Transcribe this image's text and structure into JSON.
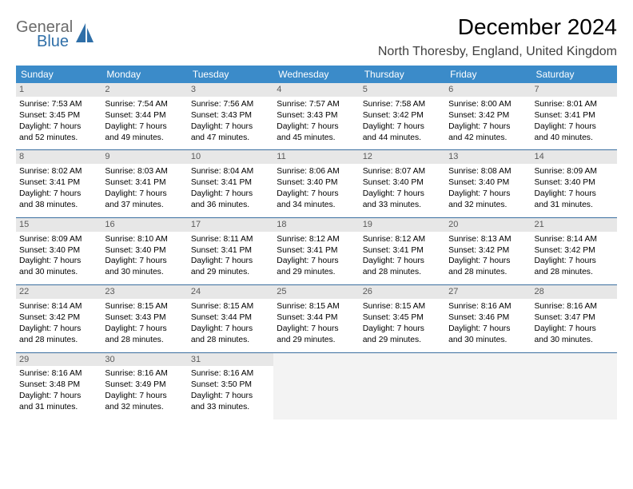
{
  "logo": {
    "line1": "General",
    "line2": "Blue"
  },
  "title": "December 2024",
  "location": "North Thoresby, England, United Kingdom",
  "colors": {
    "header_bg": "#3b8bc9",
    "header_fg": "#ffffff",
    "daynum_bg": "#e7e7e7",
    "daynum_fg": "#5a5a5a",
    "divider": "#3b6fa0",
    "empty_cell": "#f3f3f3",
    "logo_gray": "#6b6b6b",
    "logo_blue": "#2f6fa8"
  },
  "day_headers": [
    "Sunday",
    "Monday",
    "Tuesday",
    "Wednesday",
    "Thursday",
    "Friday",
    "Saturday"
  ],
  "weeks": [
    [
      {
        "day": 1,
        "sunrise": "7:53 AM",
        "sunset": "3:45 PM",
        "daylight": "7 hours and 52 minutes."
      },
      {
        "day": 2,
        "sunrise": "7:54 AM",
        "sunset": "3:44 PM",
        "daylight": "7 hours and 49 minutes."
      },
      {
        "day": 3,
        "sunrise": "7:56 AM",
        "sunset": "3:43 PM",
        "daylight": "7 hours and 47 minutes."
      },
      {
        "day": 4,
        "sunrise": "7:57 AM",
        "sunset": "3:43 PM",
        "daylight": "7 hours and 45 minutes."
      },
      {
        "day": 5,
        "sunrise": "7:58 AM",
        "sunset": "3:42 PM",
        "daylight": "7 hours and 44 minutes."
      },
      {
        "day": 6,
        "sunrise": "8:00 AM",
        "sunset": "3:42 PM",
        "daylight": "7 hours and 42 minutes."
      },
      {
        "day": 7,
        "sunrise": "8:01 AM",
        "sunset": "3:41 PM",
        "daylight": "7 hours and 40 minutes."
      }
    ],
    [
      {
        "day": 8,
        "sunrise": "8:02 AM",
        "sunset": "3:41 PM",
        "daylight": "7 hours and 38 minutes."
      },
      {
        "day": 9,
        "sunrise": "8:03 AM",
        "sunset": "3:41 PM",
        "daylight": "7 hours and 37 minutes."
      },
      {
        "day": 10,
        "sunrise": "8:04 AM",
        "sunset": "3:41 PM",
        "daylight": "7 hours and 36 minutes."
      },
      {
        "day": 11,
        "sunrise": "8:06 AM",
        "sunset": "3:40 PM",
        "daylight": "7 hours and 34 minutes."
      },
      {
        "day": 12,
        "sunrise": "8:07 AM",
        "sunset": "3:40 PM",
        "daylight": "7 hours and 33 minutes."
      },
      {
        "day": 13,
        "sunrise": "8:08 AM",
        "sunset": "3:40 PM",
        "daylight": "7 hours and 32 minutes."
      },
      {
        "day": 14,
        "sunrise": "8:09 AM",
        "sunset": "3:40 PM",
        "daylight": "7 hours and 31 minutes."
      }
    ],
    [
      {
        "day": 15,
        "sunrise": "8:09 AM",
        "sunset": "3:40 PM",
        "daylight": "7 hours and 30 minutes."
      },
      {
        "day": 16,
        "sunrise": "8:10 AM",
        "sunset": "3:40 PM",
        "daylight": "7 hours and 30 minutes."
      },
      {
        "day": 17,
        "sunrise": "8:11 AM",
        "sunset": "3:41 PM",
        "daylight": "7 hours and 29 minutes."
      },
      {
        "day": 18,
        "sunrise": "8:12 AM",
        "sunset": "3:41 PM",
        "daylight": "7 hours and 29 minutes."
      },
      {
        "day": 19,
        "sunrise": "8:12 AM",
        "sunset": "3:41 PM",
        "daylight": "7 hours and 28 minutes."
      },
      {
        "day": 20,
        "sunrise": "8:13 AM",
        "sunset": "3:42 PM",
        "daylight": "7 hours and 28 minutes."
      },
      {
        "day": 21,
        "sunrise": "8:14 AM",
        "sunset": "3:42 PM",
        "daylight": "7 hours and 28 minutes."
      }
    ],
    [
      {
        "day": 22,
        "sunrise": "8:14 AM",
        "sunset": "3:42 PM",
        "daylight": "7 hours and 28 minutes."
      },
      {
        "day": 23,
        "sunrise": "8:15 AM",
        "sunset": "3:43 PM",
        "daylight": "7 hours and 28 minutes."
      },
      {
        "day": 24,
        "sunrise": "8:15 AM",
        "sunset": "3:44 PM",
        "daylight": "7 hours and 28 minutes."
      },
      {
        "day": 25,
        "sunrise": "8:15 AM",
        "sunset": "3:44 PM",
        "daylight": "7 hours and 29 minutes."
      },
      {
        "day": 26,
        "sunrise": "8:15 AM",
        "sunset": "3:45 PM",
        "daylight": "7 hours and 29 minutes."
      },
      {
        "day": 27,
        "sunrise": "8:16 AM",
        "sunset": "3:46 PM",
        "daylight": "7 hours and 30 minutes."
      },
      {
        "day": 28,
        "sunrise": "8:16 AM",
        "sunset": "3:47 PM",
        "daylight": "7 hours and 30 minutes."
      }
    ],
    [
      {
        "day": 29,
        "sunrise": "8:16 AM",
        "sunset": "3:48 PM",
        "daylight": "7 hours and 31 minutes."
      },
      {
        "day": 30,
        "sunrise": "8:16 AM",
        "sunset": "3:49 PM",
        "daylight": "7 hours and 32 minutes."
      },
      {
        "day": 31,
        "sunrise": "8:16 AM",
        "sunset": "3:50 PM",
        "daylight": "7 hours and 33 minutes."
      },
      null,
      null,
      null,
      null
    ]
  ],
  "labels": {
    "sunrise_prefix": "Sunrise: ",
    "sunset_prefix": "Sunset: ",
    "daylight_prefix": "Daylight: "
  }
}
